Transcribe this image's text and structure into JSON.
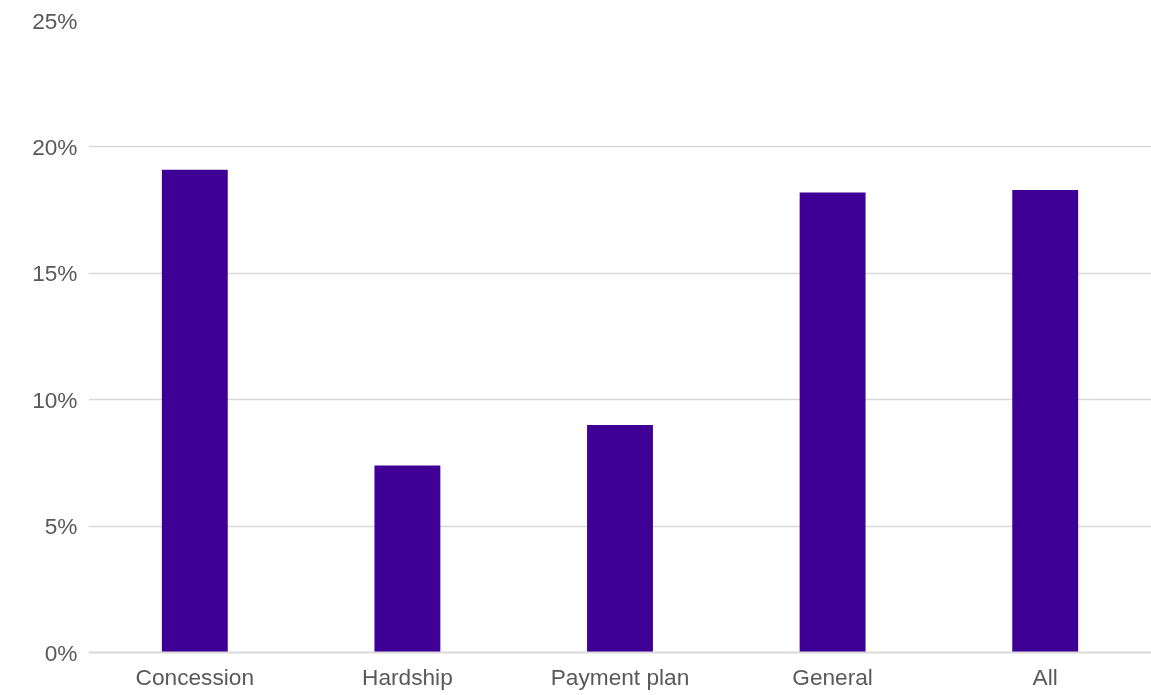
{
  "chart_data": {
    "type": "bar",
    "categories": [
      "Concession",
      "Hardship",
      "Payment plan",
      "General",
      "All"
    ],
    "values": [
      19.1,
      7.4,
      9.0,
      18.2,
      18.3
    ],
    "color": "#3f0096",
    "ylim": [
      0,
      25
    ],
    "yticks": [
      {
        "value": 0,
        "label": "0%"
      },
      {
        "value": 5,
        "label": "5%"
      },
      {
        "value": 10,
        "label": "10%"
      },
      {
        "value": 15,
        "label": "15%"
      },
      {
        "value": 20,
        "label": "20%"
      },
      {
        "value": 25,
        "label": "25%"
      }
    ],
    "grid": "y"
  }
}
